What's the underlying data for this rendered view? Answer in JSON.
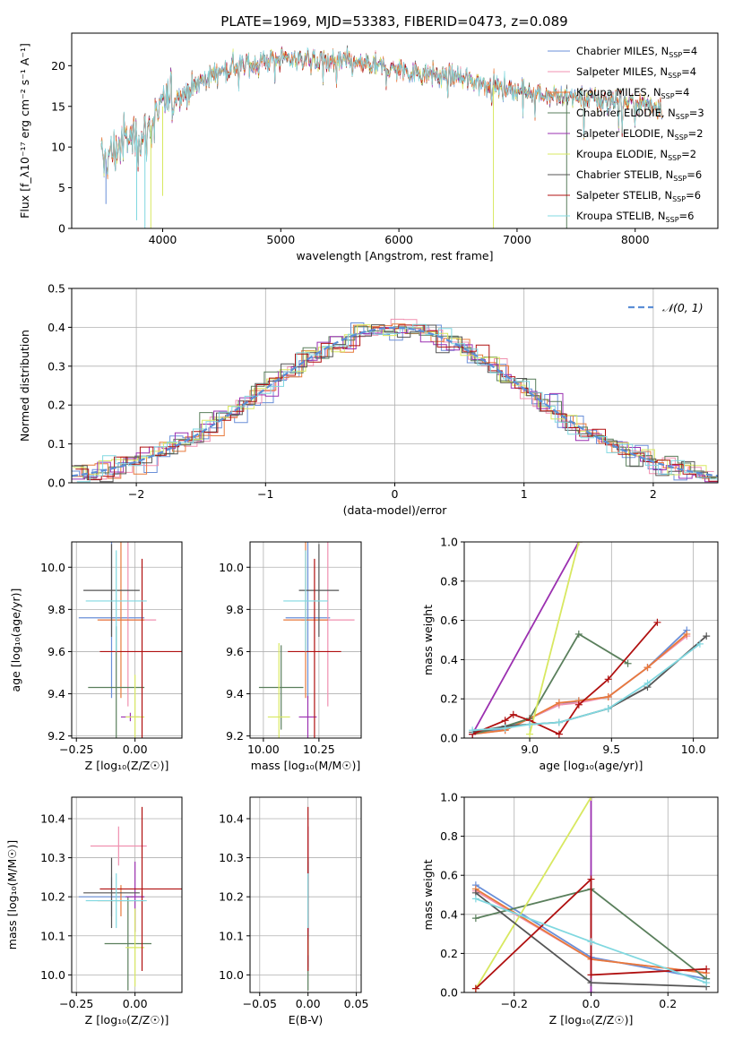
{
  "figure": {
    "title": "PLATE=1969, MJD=53383, FIBERID=0473, z=0.089",
    "colors": [
      "#6a8fd8",
      "#f090b0",
      "#e87a3c",
      "#5a7f5c",
      "#9b30b0",
      "#d8e860",
      "#555555",
      "#b01010",
      "#80d8e0"
    ]
  },
  "chart_data": [
    {
      "id": "spectrum",
      "type": "line",
      "xlabel": "wavelength [Angstrom, rest frame]",
      "ylabel": "Flux [f_λ10⁻¹⁷ erg cm⁻² s⁻¹ A⁻¹]",
      "xlim": [
        3230,
        8700
      ],
      "ylim": [
        0,
        24
      ],
      "xticks": [
        4000,
        5000,
        6000,
        7000,
        8000
      ],
      "yticks": [
        0,
        5,
        10,
        15,
        20
      ],
      "grid": false,
      "legend": "top-right",
      "legend_entries": [
        "Chabrier MILES, N_SSP=4",
        "Salpeter MILES, N_SSP=4",
        "Kroupa MILES, N_SSP=4",
        "Chabrier ELODIE, N_SSP=3",
        "Salpeter ELODIE, N_SSP=2",
        "Kroupa ELODIE, N_SSP=2",
        "Chabrier STELIB, N_SSP=6",
        "Salpeter STELIB, N_SSP=6",
        "Kroupa STELIB, N_SSP=6"
      ],
      "continuum": [
        [
          3480,
          8
        ],
        [
          3700,
          11
        ],
        [
          3850,
          11.5
        ],
        [
          4000,
          15
        ],
        [
          4200,
          17
        ],
        [
          4500,
          19.5
        ],
        [
          5000,
          21
        ],
        [
          5500,
          20.5
        ],
        [
          6000,
          19.5
        ],
        [
          6500,
          18.5
        ],
        [
          7000,
          17
        ],
        [
          7500,
          16
        ],
        [
          8000,
          15.5
        ],
        [
          8200,
          15
        ]
      ]
    },
    {
      "id": "residuals",
      "type": "histogram",
      "xlabel": "(data-model)/error",
      "ylabel": "Normed distribution",
      "xlim": [
        -2.5,
        2.5
      ],
      "ylim": [
        0,
        0.5
      ],
      "xticks": [
        -2,
        -1,
        0,
        1,
        2
      ],
      "yticks": [
        0.0,
        0.1,
        0.2,
        0.3,
        0.4,
        0.5
      ],
      "grid": true,
      "legend": "top-right",
      "legend_entries": [
        "𝒩(0, 1)"
      ],
      "bin_width": 0.1
    },
    {
      "id": "age-vs-Z",
      "type": "scatter",
      "xlabel": "Z [log₁₀(Z/Z☉)]",
      "ylabel": "age  [log₁₀(age/yr)]",
      "xlim": [
        -0.27,
        0.2
      ],
      "ylim": [
        9.19,
        10.12
      ],
      "xticks": [
        -0.25,
        0.0
      ],
      "yticks": [
        9.2,
        9.4,
        9.6,
        9.8,
        10.0
      ],
      "grid": true,
      "points": [
        {
          "x": -0.1,
          "y": 9.76,
          "xerr": 0.14,
          "yerr": 0.38
        },
        {
          "x": -0.03,
          "y": 9.75,
          "xerr": 0.12,
          "yerr": 0.41
        },
        {
          "x": -0.06,
          "y": 9.75,
          "xerr": 0.1,
          "yerr": 0.37
        },
        {
          "x": -0.08,
          "y": 9.43,
          "xerr": 0.12,
          "yerr": 0.29
        },
        {
          "x": -0.02,
          "y": 9.29,
          "xerr": 0.04,
          "yerr": 0.02
        },
        {
          "x": 0.0,
          "y": 9.29,
          "xerr": 0.04,
          "yerr": 0.2
        },
        {
          "x": -0.1,
          "y": 9.89,
          "xerr": 0.12,
          "yerr": 0.22
        },
        {
          "x": 0.03,
          "y": 9.6,
          "xerr": 0.18,
          "yerr": 0.44
        },
        {
          "x": -0.08,
          "y": 9.84,
          "xerr": 0.13,
          "yerr": 0.24
        }
      ]
    },
    {
      "id": "age-vs-mass",
      "type": "scatter",
      "xlabel": "mass [log₁₀(M/M☉)]",
      "ylabel": "",
      "xlim": [
        9.94,
        10.44
      ],
      "ylim": [
        9.19,
        10.12
      ],
      "xticks": [
        10.0,
        10.25
      ],
      "yticks": [
        9.2,
        9.4,
        9.6,
        9.8,
        10.0
      ],
      "grid": true,
      "points": [
        {
          "x": 10.2,
          "y": 9.76,
          "xerr": 0.1,
          "yerr": 0.38
        },
        {
          "x": 10.29,
          "y": 9.75,
          "xerr": 0.12,
          "yerr": 0.41
        },
        {
          "x": 10.19,
          "y": 9.75,
          "xerr": 0.1,
          "yerr": 0.37
        },
        {
          "x": 10.08,
          "y": 9.43,
          "xerr": 0.1,
          "yerr": 0.2
        },
        {
          "x": 10.2,
          "y": 9.29,
          "xerr": 0.04,
          "yerr": 0.1
        },
        {
          "x": 10.07,
          "y": 9.29,
          "xerr": 0.05,
          "yerr": 0.35
        },
        {
          "x": 10.25,
          "y": 9.89,
          "xerr": 0.09,
          "yerr": 0.22
        },
        {
          "x": 10.23,
          "y": 9.6,
          "xerr": 0.12,
          "yerr": 0.44
        },
        {
          "x": 10.19,
          "y": 9.84,
          "xerr": 0.1,
          "yerr": 0.24
        }
      ]
    },
    {
      "id": "mass-weight-vs-age",
      "type": "line",
      "xlabel": "age  [log₁₀(age/yr)]",
      "ylabel": "mass weight",
      "xlim": [
        8.6,
        10.15
      ],
      "ylim": [
        0,
        1
      ],
      "xticks": [
        9.0,
        9.5,
        10.0
      ],
      "yticks": [
        0.0,
        0.2,
        0.4,
        0.6,
        0.8,
        1.0
      ],
      "grid": true,
      "series": [
        {
          "points": [
            [
              8.65,
              0.02
            ],
            [
              8.85,
              0.05
            ],
            [
              9.0,
              0.1
            ],
            [
              9.18,
              0.17
            ],
            [
              9.3,
              0.19
            ],
            [
              9.48,
              0.21
            ],
            [
              9.72,
              0.36
            ],
            [
              9.96,
              0.55
            ]
          ]
        },
        {
          "points": [
            [
              8.65,
              0.02
            ],
            [
              8.85,
              0.04
            ],
            [
              9.0,
              0.1
            ],
            [
              9.18,
              0.17
            ],
            [
              9.3,
              0.18
            ],
            [
              9.48,
              0.21
            ],
            [
              9.72,
              0.36
            ],
            [
              9.96,
              0.52
            ]
          ]
        },
        {
          "points": [
            [
              8.65,
              0.02
            ],
            [
              8.85,
              0.04
            ],
            [
              9.0,
              0.1
            ],
            [
              9.18,
              0.18
            ],
            [
              9.3,
              0.19
            ],
            [
              9.48,
              0.21
            ],
            [
              9.72,
              0.36
            ],
            [
              9.96,
              0.53
            ]
          ]
        },
        {
          "points": [
            [
              8.65,
              0.02
            ],
            [
              8.85,
              0.06
            ],
            [
              9.0,
              0.1
            ],
            [
              9.3,
              0.53
            ],
            [
              9.6,
              0.38
            ]
          ]
        },
        {
          "points": [
            [
              8.65,
              0.02
            ],
            [
              9.3,
              1.0
            ]
          ]
        },
        {
          "points": [
            [
              9.0,
              0.02
            ],
            [
              9.3,
              1.0
            ]
          ]
        },
        {
          "points": [
            [
              8.65,
              0.03
            ],
            [
              8.85,
              0.06
            ],
            [
              9.0,
              0.07
            ],
            [
              9.18,
              0.08
            ],
            [
              9.48,
              0.15
            ],
            [
              9.72,
              0.26
            ],
            [
              10.08,
              0.52
            ]
          ]
        },
        {
          "points": [
            [
              8.65,
              0.02
            ],
            [
              8.85,
              0.09
            ],
            [
              8.9,
              0.12
            ],
            [
              9.0,
              0.09
            ],
            [
              9.18,
              0.02
            ],
            [
              9.3,
              0.17
            ],
            [
              9.48,
              0.3
            ],
            [
              9.78,
              0.59
            ]
          ]
        },
        {
          "points": [
            [
              8.65,
              0.04
            ],
            [
              8.85,
              0.05
            ],
            [
              9.0,
              0.07
            ],
            [
              9.18,
              0.08
            ],
            [
              9.48,
              0.15
            ],
            [
              9.72,
              0.28
            ],
            [
              10.04,
              0.48
            ]
          ]
        }
      ]
    },
    {
      "id": "mass-vs-Z",
      "type": "scatter",
      "xlabel": "Z [log₁₀(Z/Z☉)]",
      "ylabel": "mass [log₁₀(M/M☉)]",
      "xlim": [
        -0.27,
        0.2
      ],
      "ylim": [
        9.955,
        10.455
      ],
      "xticks": [
        -0.25,
        0.0
      ],
      "yticks": [
        10.0,
        10.1,
        10.2,
        10.3,
        10.4
      ],
      "grid": true,
      "points": [
        {
          "x": -0.1,
          "y": 10.2,
          "xerr": 0.14,
          "yerr": 0.05
        },
        {
          "x": -0.07,
          "y": 10.33,
          "xerr": 0.12,
          "yerr": 0.05
        },
        {
          "x": -0.06,
          "y": 10.19,
          "xerr": 0.1,
          "yerr": 0.04
        },
        {
          "x": -0.03,
          "y": 10.08,
          "xerr": 0.1,
          "yerr": 0.12
        },
        {
          "x": 0.0,
          "y": 10.2,
          "xerr": 0.04,
          "yerr": 0.09
        },
        {
          "x": 0.0,
          "y": 10.07,
          "xerr": 0.04,
          "yerr": 0.1
        },
        {
          "x": -0.1,
          "y": 10.21,
          "xerr": 0.12,
          "yerr": 0.09
        },
        {
          "x": 0.03,
          "y": 10.22,
          "xerr": 0.18,
          "yerr": 0.21
        },
        {
          "x": -0.08,
          "y": 10.19,
          "xerr": 0.13,
          "yerr": 0.07
        }
      ]
    },
    {
      "id": "mass-vs-EBV",
      "type": "scatter",
      "xlabel": "E(B-V)",
      "ylabel": "",
      "xlim": [
        -0.06,
        0.055
      ],
      "ylim": [
        9.955,
        10.455
      ],
      "xticks": [
        -0.05,
        0.0,
        0.05
      ],
      "yticks": [
        10.0,
        10.1,
        10.2,
        10.3,
        10.4
      ],
      "grid": true,
      "points": [
        {
          "x": 0.0,
          "y": 10.2,
          "xerr": 0,
          "yerr": 0.18
        },
        {
          "x": 0.0,
          "y": 10.33,
          "xerr": 0,
          "yerr": 0.05
        },
        {
          "x": 0.0,
          "y": 10.19,
          "xerr": 0,
          "yerr": 0.04
        },
        {
          "x": 0.0,
          "y": 10.08,
          "xerr": 0,
          "yerr": 0.12
        },
        {
          "x": 0.0,
          "y": 10.2,
          "xerr": 0,
          "yerr": 0.09
        },
        {
          "x": 0.0,
          "y": 10.07,
          "xerr": 0,
          "yerr": 0.02
        },
        {
          "x": 0.0,
          "y": 10.21,
          "xerr": 0,
          "yerr": 0.09
        },
        {
          "x": 0.0,
          "y": 10.22,
          "xerr": 0,
          "yerr": 0.21
        },
        {
          "x": 0.0,
          "y": 10.19,
          "xerr": 0,
          "yerr": 0.07
        }
      ]
    },
    {
      "id": "mass-weight-vs-Z",
      "type": "line",
      "xlabel": "Z [log₁₀(Z/Z☉)]",
      "ylabel": "mass weight",
      "xlim": [
        -0.33,
        0.33
      ],
      "ylim": [
        0,
        1
      ],
      "xticks": [
        -0.2,
        0.0,
        0.2
      ],
      "yticks": [
        0.0,
        0.2,
        0.4,
        0.6,
        0.8,
        1.0
      ],
      "grid": true,
      "series": [
        {
          "points": [
            [
              -0.3,
              0.55
            ],
            [
              0.0,
              0.18
            ],
            [
              0.3,
              0.07
            ]
          ]
        },
        {
          "points": [
            [
              -0.3,
              0.52
            ],
            [
              0.0,
              0.17
            ],
            [
              0.3,
              0.1
            ]
          ]
        },
        {
          "points": [
            [
              -0.3,
              0.53
            ],
            [
              0.0,
              0.17
            ],
            [
              0.3,
              0.1
            ]
          ]
        },
        {
          "points": [
            [
              -0.3,
              0.38
            ],
            [
              0.0,
              0.53
            ],
            [
              0.3,
              0.07
            ]
          ]
        },
        {
          "points": [
            [
              0.0,
              0.0
            ],
            [
              0.0,
              1.0
            ]
          ]
        },
        {
          "points": [
            [
              -0.3,
              0.02
            ],
            [
              0.0,
              1.0
            ]
          ]
        },
        {
          "points": [
            [
              -0.3,
              0.51
            ],
            [
              0.0,
              0.05
            ],
            [
              0.3,
              0.03
            ]
          ]
        },
        {
          "points": [
            [
              -0.3,
              0.02
            ],
            [
              0.0,
              0.58
            ],
            [
              0.0,
              0.09
            ],
            [
              0.3,
              0.12
            ]
          ]
        },
        {
          "points": [
            [
              -0.3,
              0.48
            ],
            [
              0.0,
              0.26
            ],
            [
              0.3,
              0.05
            ]
          ]
        }
      ]
    }
  ]
}
